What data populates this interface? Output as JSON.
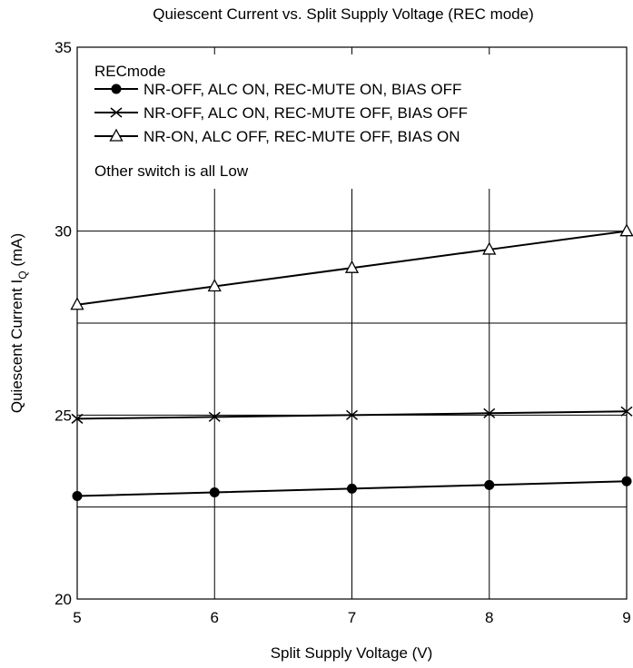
{
  "chart_data": {
    "type": "line",
    "title": "Quiescent Current vs. Split Supply Voltage (REC mode)",
    "xlabel": "Split Supply Voltage  (V)",
    "ylabel_main": "Quiescent Current  I",
    "ylabel_sub": "Q",
    "ylabel_unit": "  (mA)",
    "xlim": [
      5,
      9
    ],
    "ylim": [
      20,
      35
    ],
    "x_ticks": [
      5,
      6,
      7,
      8,
      9
    ],
    "y_ticks": [
      20,
      25,
      30,
      35
    ],
    "minor_h_lines": [
      22.5,
      27.5
    ],
    "x": [
      5,
      6,
      7,
      8,
      9
    ],
    "legend_title": "RECmode",
    "legend_note": "Other switch is all  Low",
    "legend_position": "top-left",
    "grid": true,
    "series": [
      {
        "name": "NR-OFF, ALC ON, REC-MUTE ON, BIAS OFF",
        "marker": "filled-circle",
        "values": [
          22.8,
          22.9,
          23.0,
          23.1,
          23.2
        ]
      },
      {
        "name": "NR-OFF, ALC ON, REC-MUTE OFF, BIAS OFF",
        "marker": "x-cross",
        "values": [
          24.9,
          24.95,
          25.0,
          25.05,
          25.1
        ]
      },
      {
        "name": "NR-ON, ALC OFF, REC-MUTE OFF, BIAS ON",
        "marker": "open-triangle",
        "values": [
          28.0,
          28.5,
          29.0,
          29.5,
          30.0
        ]
      }
    ]
  }
}
